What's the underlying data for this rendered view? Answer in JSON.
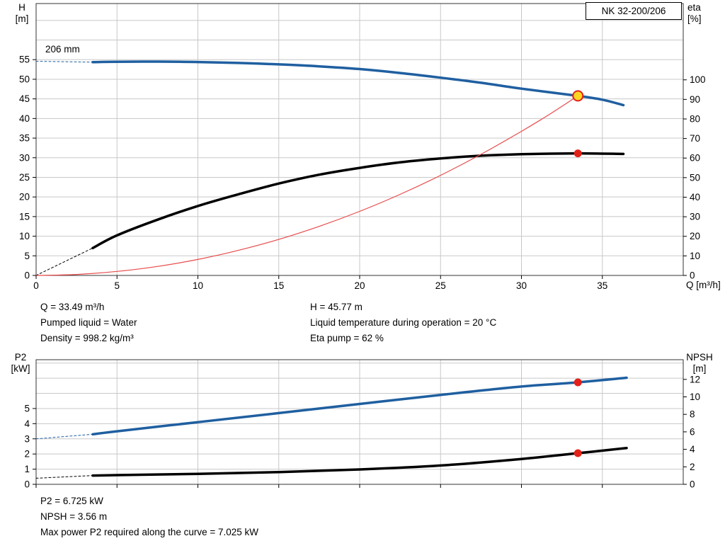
{
  "title_box": "NK 32-200/206",
  "impeller_label": "206 mm",
  "info_top": {
    "col1": [
      "Q = 33.49 m³/h",
      "Pumped liquid = Water",
      "Density = 998.2 kg/m³"
    ],
    "col2": [
      "H = 45.77 m",
      "Liquid temperature during operation = 20 °C",
      "Eta pump = 62 %"
    ]
  },
  "info_bottom": [
    "P2 = 6.725 kW",
    "NPSH = 3.56 m",
    "Max power P2 required along the curve = 7.025 kW"
  ],
  "colors": {
    "curve_blue": "#1f5fa0",
    "curve_black": "#000000",
    "system_red": "#e84b4b",
    "dot_red": "#e32119",
    "dot_yellow": "#ffd520",
    "grid": "#c8c8c8",
    "border": "#333333"
  },
  "chart_data": [
    {
      "type": "line",
      "title": "NK 32-200/206",
      "x_axis": {
        "label": "Q [m³/h]",
        "min": 0,
        "max": 40,
        "ticks": [
          0,
          5,
          10,
          15,
          20,
          25,
          30,
          35
        ],
        "grid": true
      },
      "y_left": {
        "label": "H [m]",
        "label_lines": [
          "H",
          "[m]"
        ],
        "min": 0,
        "max": 69.3,
        "ticks": [
          0,
          5,
          10,
          15,
          20,
          25,
          30,
          35,
          40,
          45,
          50,
          55
        ],
        "grid_max": 65
      },
      "y_right": {
        "label": "eta [%]",
        "label_lines": [
          "eta",
          "[%]"
        ],
        "min": 0,
        "max": 139,
        "ticks": [
          0,
          10,
          20,
          30,
          40,
          50,
          60,
          70,
          80,
          90,
          100
        ]
      },
      "annotation": "206 mm",
      "series": [
        {
          "name": "head-curve-dashed-lead",
          "axis": "left",
          "color": "#1f5fa0",
          "width": 1,
          "dash": "3 3",
          "points": [
            [
              0,
              54.6
            ],
            [
              3.5,
              54.35
            ]
          ]
        },
        {
          "name": "head-curve",
          "axis": "left",
          "color": "#1f5fa0",
          "width": 3.5,
          "points": [
            [
              3.5,
              54.35
            ],
            [
              5,
              54.45
            ],
            [
              7.5,
              54.5
            ],
            [
              10,
              54.4
            ],
            [
              12.5,
              54.15
            ],
            [
              15,
              53.8
            ],
            [
              17.5,
              53.3
            ],
            [
              20,
              52.6
            ],
            [
              22.5,
              51.6
            ],
            [
              25,
              50.4
            ],
            [
              27.5,
              49.1
            ],
            [
              30,
              47.6
            ],
            [
              33.49,
              45.77
            ],
            [
              35,
              44.8
            ],
            [
              36.3,
              43.4
            ]
          ]
        },
        {
          "name": "eta-curve-dashed-lead",
          "axis": "right",
          "color": "#000000",
          "width": 1,
          "dash": "3 3",
          "points": [
            [
              0,
              0
            ],
            [
              3.5,
              14
            ]
          ]
        },
        {
          "name": "eta-curve",
          "axis": "right",
          "color": "#000000",
          "width": 3.5,
          "points": [
            [
              3.5,
              14
            ],
            [
              5,
              20.5
            ],
            [
              7.5,
              28.5
            ],
            [
              10,
              35.5
            ],
            [
              12.5,
              41.5
            ],
            [
              15,
              47
            ],
            [
              17.5,
              51.5
            ],
            [
              20,
              55
            ],
            [
              22.5,
              57.8
            ],
            [
              25,
              59.8
            ],
            [
              27.5,
              61.2
            ],
            [
              30,
              62
            ],
            [
              33.49,
              62.4
            ],
            [
              36.3,
              62.1
            ]
          ]
        },
        {
          "name": "system-curve",
          "axis": "left",
          "color": "#e84b4b",
          "width": 1.2,
          "points": [
            [
              0,
              0
            ],
            [
              2.5,
              0.26
            ],
            [
              5,
              1.02
            ],
            [
              7.5,
              2.3
            ],
            [
              10,
              4.08
            ],
            [
              12.5,
              6.38
            ],
            [
              15,
              9.18
            ],
            [
              17.5,
              12.5
            ],
            [
              20,
              16.33
            ],
            [
              22.5,
              20.66
            ],
            [
              25,
              25.51
            ],
            [
              27.5,
              30.87
            ],
            [
              30,
              36.73
            ],
            [
              31.75,
              41.1
            ],
            [
              33.49,
              45.77
            ]
          ]
        }
      ],
      "markers": [
        {
          "name": "duty-point",
          "axis": "left",
          "x": 33.49,
          "y": 45.77,
          "r": 7,
          "fill": "#ffd520",
          "stroke": "#e32119",
          "stroke_width": 2
        },
        {
          "name": "eta-duty-point",
          "axis": "right",
          "x": 33.49,
          "y": 62.4,
          "r": 5.5,
          "fill": "#e32119",
          "stroke": "none",
          "stroke_width": 0
        }
      ]
    },
    {
      "type": "line",
      "title": "",
      "x_axis": {
        "label": "",
        "min": 0,
        "max": 40,
        "ticks": [
          0,
          5,
          10,
          15,
          20,
          25,
          30,
          35
        ],
        "grid": true
      },
      "y_left": {
        "label": "P2 [kW]",
        "label_lines": [
          "P2",
          "[kW]"
        ],
        "min": 0,
        "max": 8.22,
        "ticks": [
          0,
          1,
          2,
          3,
          4,
          5
        ],
        "grid_max": 8
      },
      "y_right": {
        "label": "NPSH [m]",
        "label_lines": [
          "NPSH",
          "[m]"
        ],
        "min": 0,
        "max": 14.25,
        "ticks": [
          0,
          2,
          4,
          6,
          8,
          10,
          12
        ]
      },
      "series": [
        {
          "name": "p2-curve-dashed-lead",
          "axis": "left",
          "color": "#1f5fa0",
          "width": 1,
          "dash": "3 3",
          "points": [
            [
              0,
              3.0
            ],
            [
              3.5,
              3.3
            ]
          ]
        },
        {
          "name": "p2-curve",
          "axis": "left",
          "color": "#1f5fa0",
          "width": 3.5,
          "points": [
            [
              3.5,
              3.3
            ],
            [
              5,
              3.5
            ],
            [
              10,
              4.1
            ],
            [
              15,
              4.7
            ],
            [
              20,
              5.3
            ],
            [
              25,
              5.9
            ],
            [
              30,
              6.45
            ],
            [
              33.49,
              6.725
            ],
            [
              36.5,
              7.03
            ]
          ]
        },
        {
          "name": "npsh-curve-dashed-lead",
          "axis": "right",
          "color": "#000000",
          "width": 1,
          "dash": "3 3",
          "points": [
            [
              0,
              0.7
            ],
            [
              3.5,
              1.0
            ]
          ]
        },
        {
          "name": "npsh-curve",
          "axis": "right",
          "color": "#000000",
          "width": 3.5,
          "points": [
            [
              3.5,
              1.0
            ],
            [
              5,
              1.05
            ],
            [
              10,
              1.2
            ],
            [
              15,
              1.4
            ],
            [
              20,
              1.7
            ],
            [
              25,
              2.15
            ],
            [
              30,
              2.9
            ],
            [
              33.49,
              3.56
            ],
            [
              36.5,
              4.15
            ]
          ]
        }
      ],
      "markers": [
        {
          "name": "p2-duty-point",
          "axis": "left",
          "x": 33.49,
          "y": 6.725,
          "r": 5.5,
          "fill": "#e32119",
          "stroke": "none",
          "stroke_width": 0
        },
        {
          "name": "npsh-duty-point",
          "axis": "right",
          "x": 33.49,
          "y": 3.56,
          "r": 5.5,
          "fill": "#e32119",
          "stroke": "none",
          "stroke_width": 0
        }
      ]
    }
  ]
}
